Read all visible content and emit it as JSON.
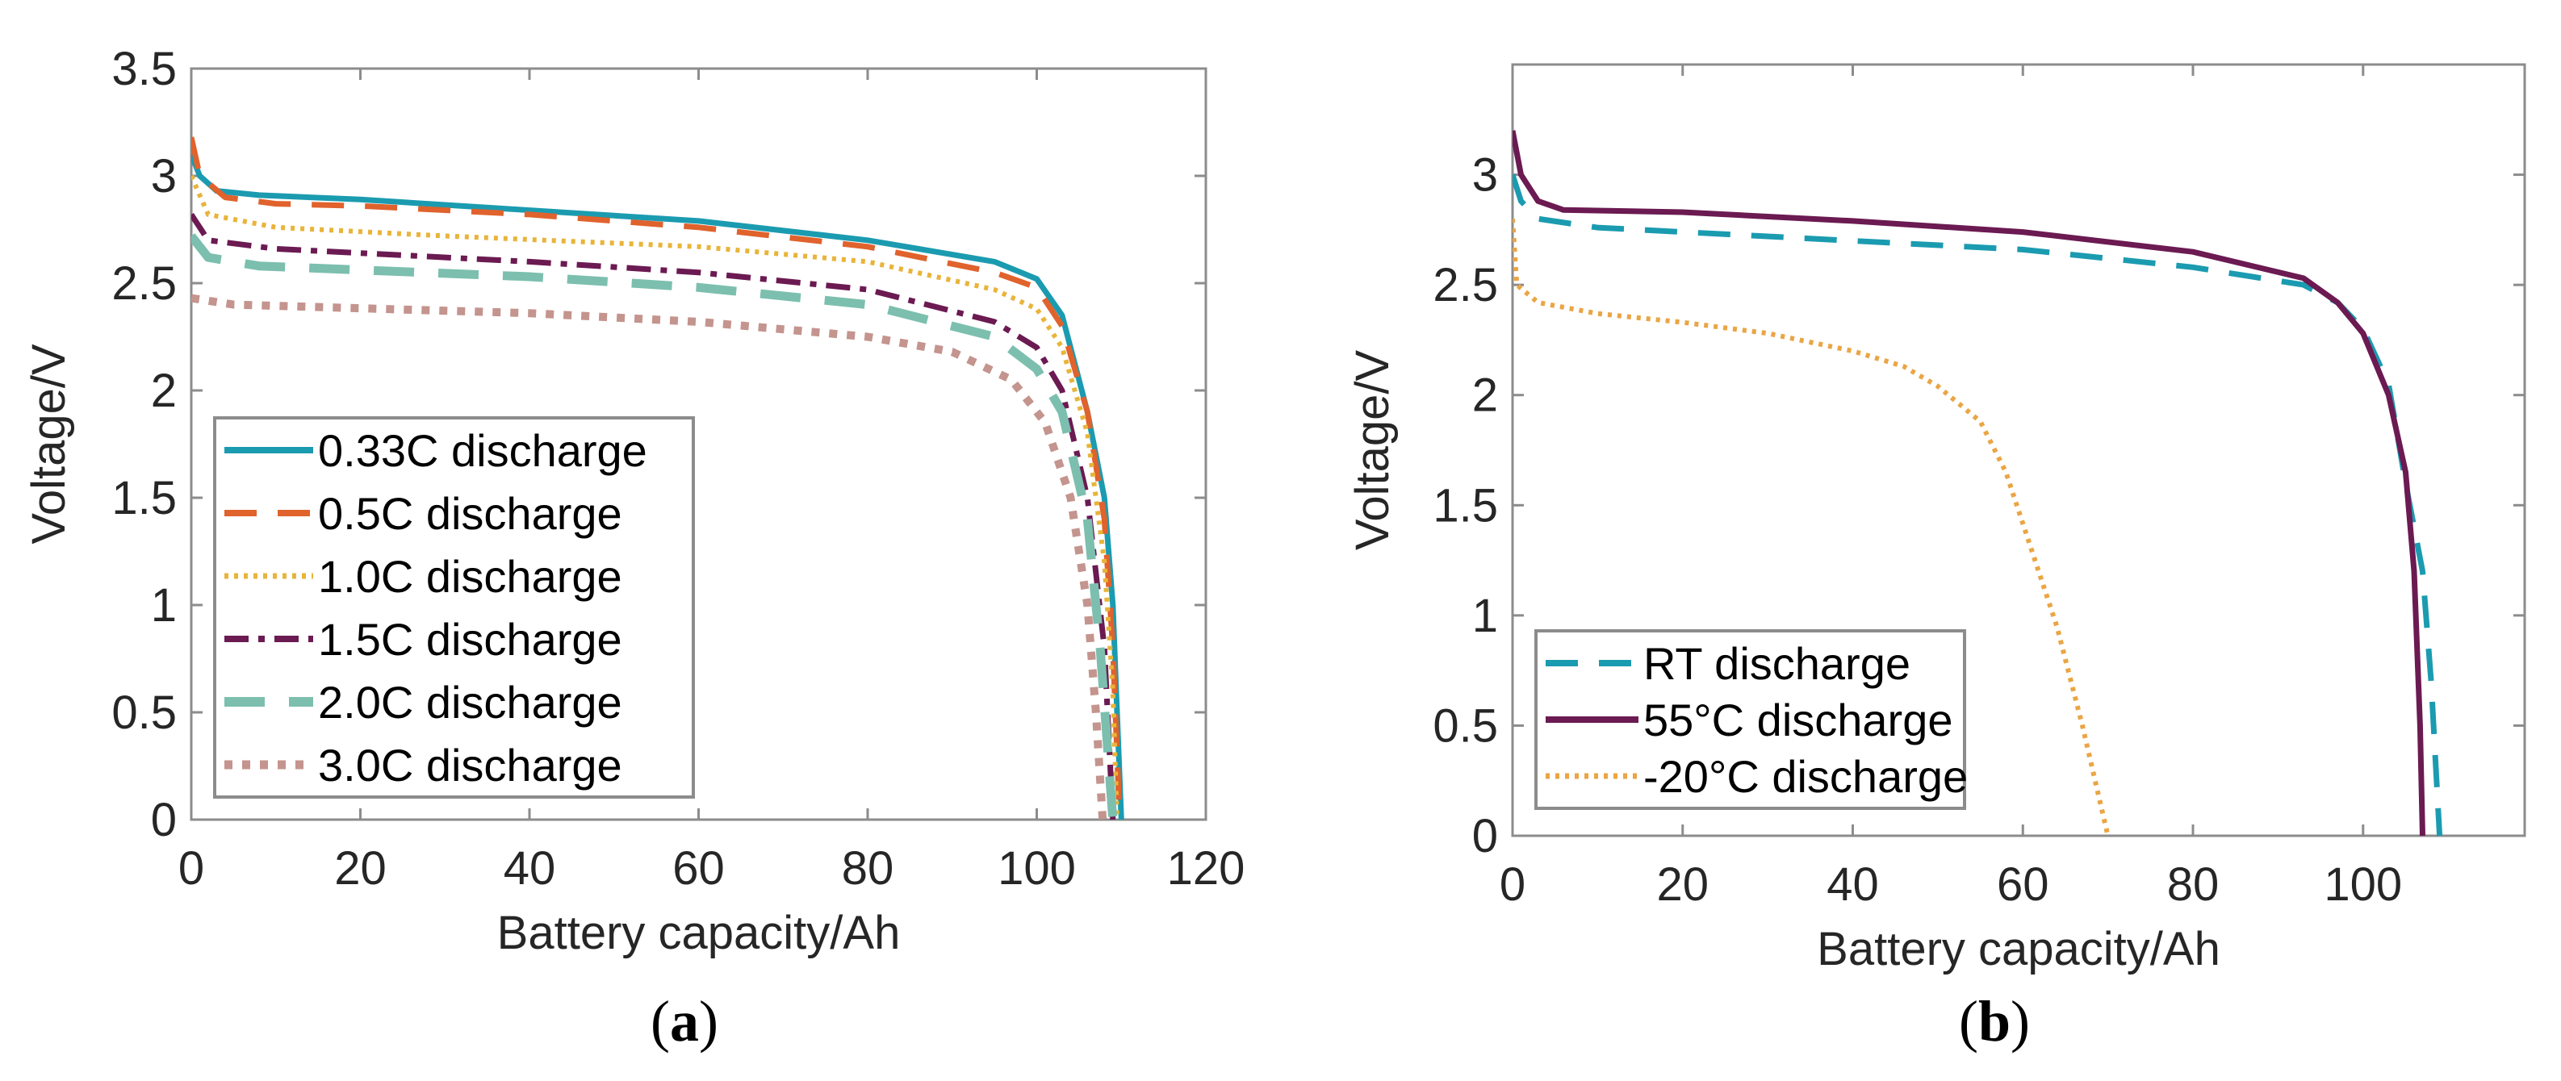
{
  "chart_data": [
    {
      "type": "line",
      "panel_label": "a",
      "xlabel": "Battery capacity/Ah",
      "ylabel": "Voltage/V",
      "xlim": [
        0,
        120
      ],
      "ylim": [
        0,
        3.5
      ],
      "xticks": [
        "0",
        "20",
        "40",
        "60",
        "80",
        "100",
        "120"
      ],
      "yticks": [
        "0",
        "0.5",
        "1",
        "1.5",
        "2",
        "2.5",
        "3",
        "3.5"
      ],
      "grid": false,
      "legend_position": "bottom-left",
      "series": [
        {
          "name": "0.33C discharge",
          "color": "#1b9bb0",
          "style": "solid",
          "x": [
            0,
            1,
            3,
            8,
            20,
            40,
            60,
            80,
            95,
            100,
            103,
            106,
            108,
            109,
            109.5,
            110
          ],
          "y": [
            3.1,
            3.0,
            2.93,
            2.91,
            2.89,
            2.84,
            2.79,
            2.7,
            2.6,
            2.52,
            2.35,
            1.9,
            1.5,
            1.0,
            0.5,
            0
          ]
        },
        {
          "name": "0.5C discharge",
          "color": "#e0622c",
          "style": "dashed",
          "x": [
            0,
            1,
            4,
            10,
            20,
            40,
            60,
            80,
            95,
            100,
            103,
            106,
            108,
            109,
            109.8
          ],
          "y": [
            3.18,
            3.0,
            2.9,
            2.87,
            2.86,
            2.82,
            2.76,
            2.67,
            2.55,
            2.48,
            2.3,
            1.9,
            1.4,
            0.8,
            0
          ]
        },
        {
          "name": "1.0C discharge",
          "color": "#e8b43a",
          "style": "dotted",
          "x": [
            0,
            2,
            10,
            30,
            60,
            80,
            95,
            100,
            103,
            106,
            108,
            109,
            109.5
          ],
          "y": [
            3.0,
            2.82,
            2.76,
            2.72,
            2.67,
            2.6,
            2.47,
            2.38,
            2.2,
            1.8,
            1.2,
            0.6,
            0
          ]
        },
        {
          "name": "1.5C discharge",
          "color": "#6b1a52",
          "style": "dashdot",
          "x": [
            0,
            2,
            10,
            40,
            60,
            80,
            95,
            100,
            103,
            106,
            108,
            109
          ],
          "y": [
            2.82,
            2.7,
            2.66,
            2.6,
            2.55,
            2.47,
            2.32,
            2.2,
            2.0,
            1.5,
            0.8,
            0
          ]
        },
        {
          "name": "2.0C discharge",
          "color": "#7cbfae",
          "style": "longdash",
          "x": [
            0,
            2,
            8,
            40,
            60,
            80,
            95,
            100,
            103,
            106,
            107.5,
            109
          ],
          "y": [
            2.72,
            2.62,
            2.58,
            2.53,
            2.48,
            2.4,
            2.25,
            2.1,
            1.9,
            1.4,
            0.8,
            0
          ]
        },
        {
          "name": "3.0C discharge",
          "color": "#c4948e",
          "style": "heavydot",
          "x": [
            0,
            5,
            40,
            60,
            80,
            90,
            97,
            101,
            104,
            106,
            107,
            107.8
          ],
          "y": [
            2.43,
            2.4,
            2.36,
            2.32,
            2.25,
            2.18,
            2.05,
            1.85,
            1.5,
            1.0,
            0.5,
            0
          ]
        }
      ]
    },
    {
      "type": "line",
      "panel_label": "b",
      "xlabel": "Battery capacity/Ah",
      "ylabel": "Voltage/V",
      "xlim": [
        0,
        119
      ],
      "ylim": [
        0,
        3.5
      ],
      "xticks": [
        "0",
        "20",
        "40",
        "60",
        "80",
        "100"
      ],
      "yticks": [
        "0",
        "0.5",
        "1",
        "1.5",
        "2",
        "2.5",
        "3"
      ],
      "grid": false,
      "legend_position": "bottom-left",
      "series": [
        {
          "name": "RT discharge",
          "color": "#1b9bb0",
          "style": "dashed",
          "x": [
            0,
            1,
            3,
            10,
            40,
            60,
            80,
            93,
            97,
            100,
            103,
            105,
            107,
            108,
            109
          ],
          "y": [
            3.0,
            2.88,
            2.8,
            2.76,
            2.7,
            2.66,
            2.58,
            2.5,
            2.42,
            2.3,
            2.05,
            1.6,
            1.2,
            0.7,
            0
          ]
        },
        {
          "name": "55°C discharge",
          "color": "#6b1a52",
          "style": "solid",
          "x": [
            0,
            1,
            3,
            6,
            20,
            40,
            60,
            80,
            93,
            97,
            100,
            103,
            105,
            106,
            106.7,
            107
          ],
          "y": [
            3.2,
            3.0,
            2.88,
            2.84,
            2.83,
            2.79,
            2.74,
            2.65,
            2.53,
            2.42,
            2.28,
            2.0,
            1.65,
            1.2,
            0.5,
            0
          ]
        },
        {
          "name": "-20°C discharge",
          "color": "#eaa544",
          "style": "dotted",
          "x": [
            0,
            0.5,
            3,
            10,
            20,
            30,
            40,
            46,
            50,
            55,
            58,
            61,
            64,
            67,
            70
          ],
          "y": [
            2.8,
            2.5,
            2.42,
            2.37,
            2.33,
            2.28,
            2.2,
            2.13,
            2.04,
            1.88,
            1.65,
            1.3,
            0.95,
            0.5,
            0
          ]
        }
      ]
    }
  ]
}
